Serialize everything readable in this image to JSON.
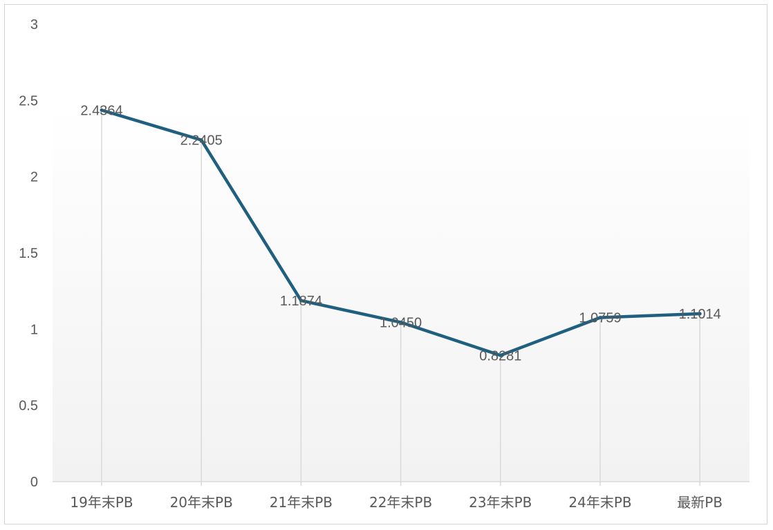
{
  "chart_data": {
    "type": "line",
    "title": "",
    "xlabel": "",
    "ylabel": "",
    "categories": [
      "19年末PB",
      "20年末PB",
      "21年末PB",
      "22年末PB",
      "23年末PB",
      "24年末PB",
      "最新PB"
    ],
    "series": [
      {
        "values": [
          2.4364,
          2.2405,
          1.1874,
          1.045,
          0.8281,
          1.0759,
          1.1014
        ],
        "labels": [
          "2.4364",
          "2.2405",
          "1.1874",
          "1.0450",
          "0.8281",
          "1.0759",
          "1.1014"
        ],
        "color": "#1f5f80"
      }
    ],
    "ylim": [
      0,
      3
    ],
    "y_ticks": [
      "0",
      "0.5",
      "1",
      "1.5",
      "2",
      "2.5",
      "3"
    ],
    "y_tick_values": [
      0,
      0.5,
      1,
      1.5,
      2,
      2.5,
      3
    ],
    "grid": false,
    "drop_lines": true,
    "legend": "none",
    "plot_area_gradient": [
      "#ffffff",
      "#f2f2f2"
    ],
    "axis_color": "#d9d9d9",
    "dropline_color": "#d9d9d9"
  }
}
